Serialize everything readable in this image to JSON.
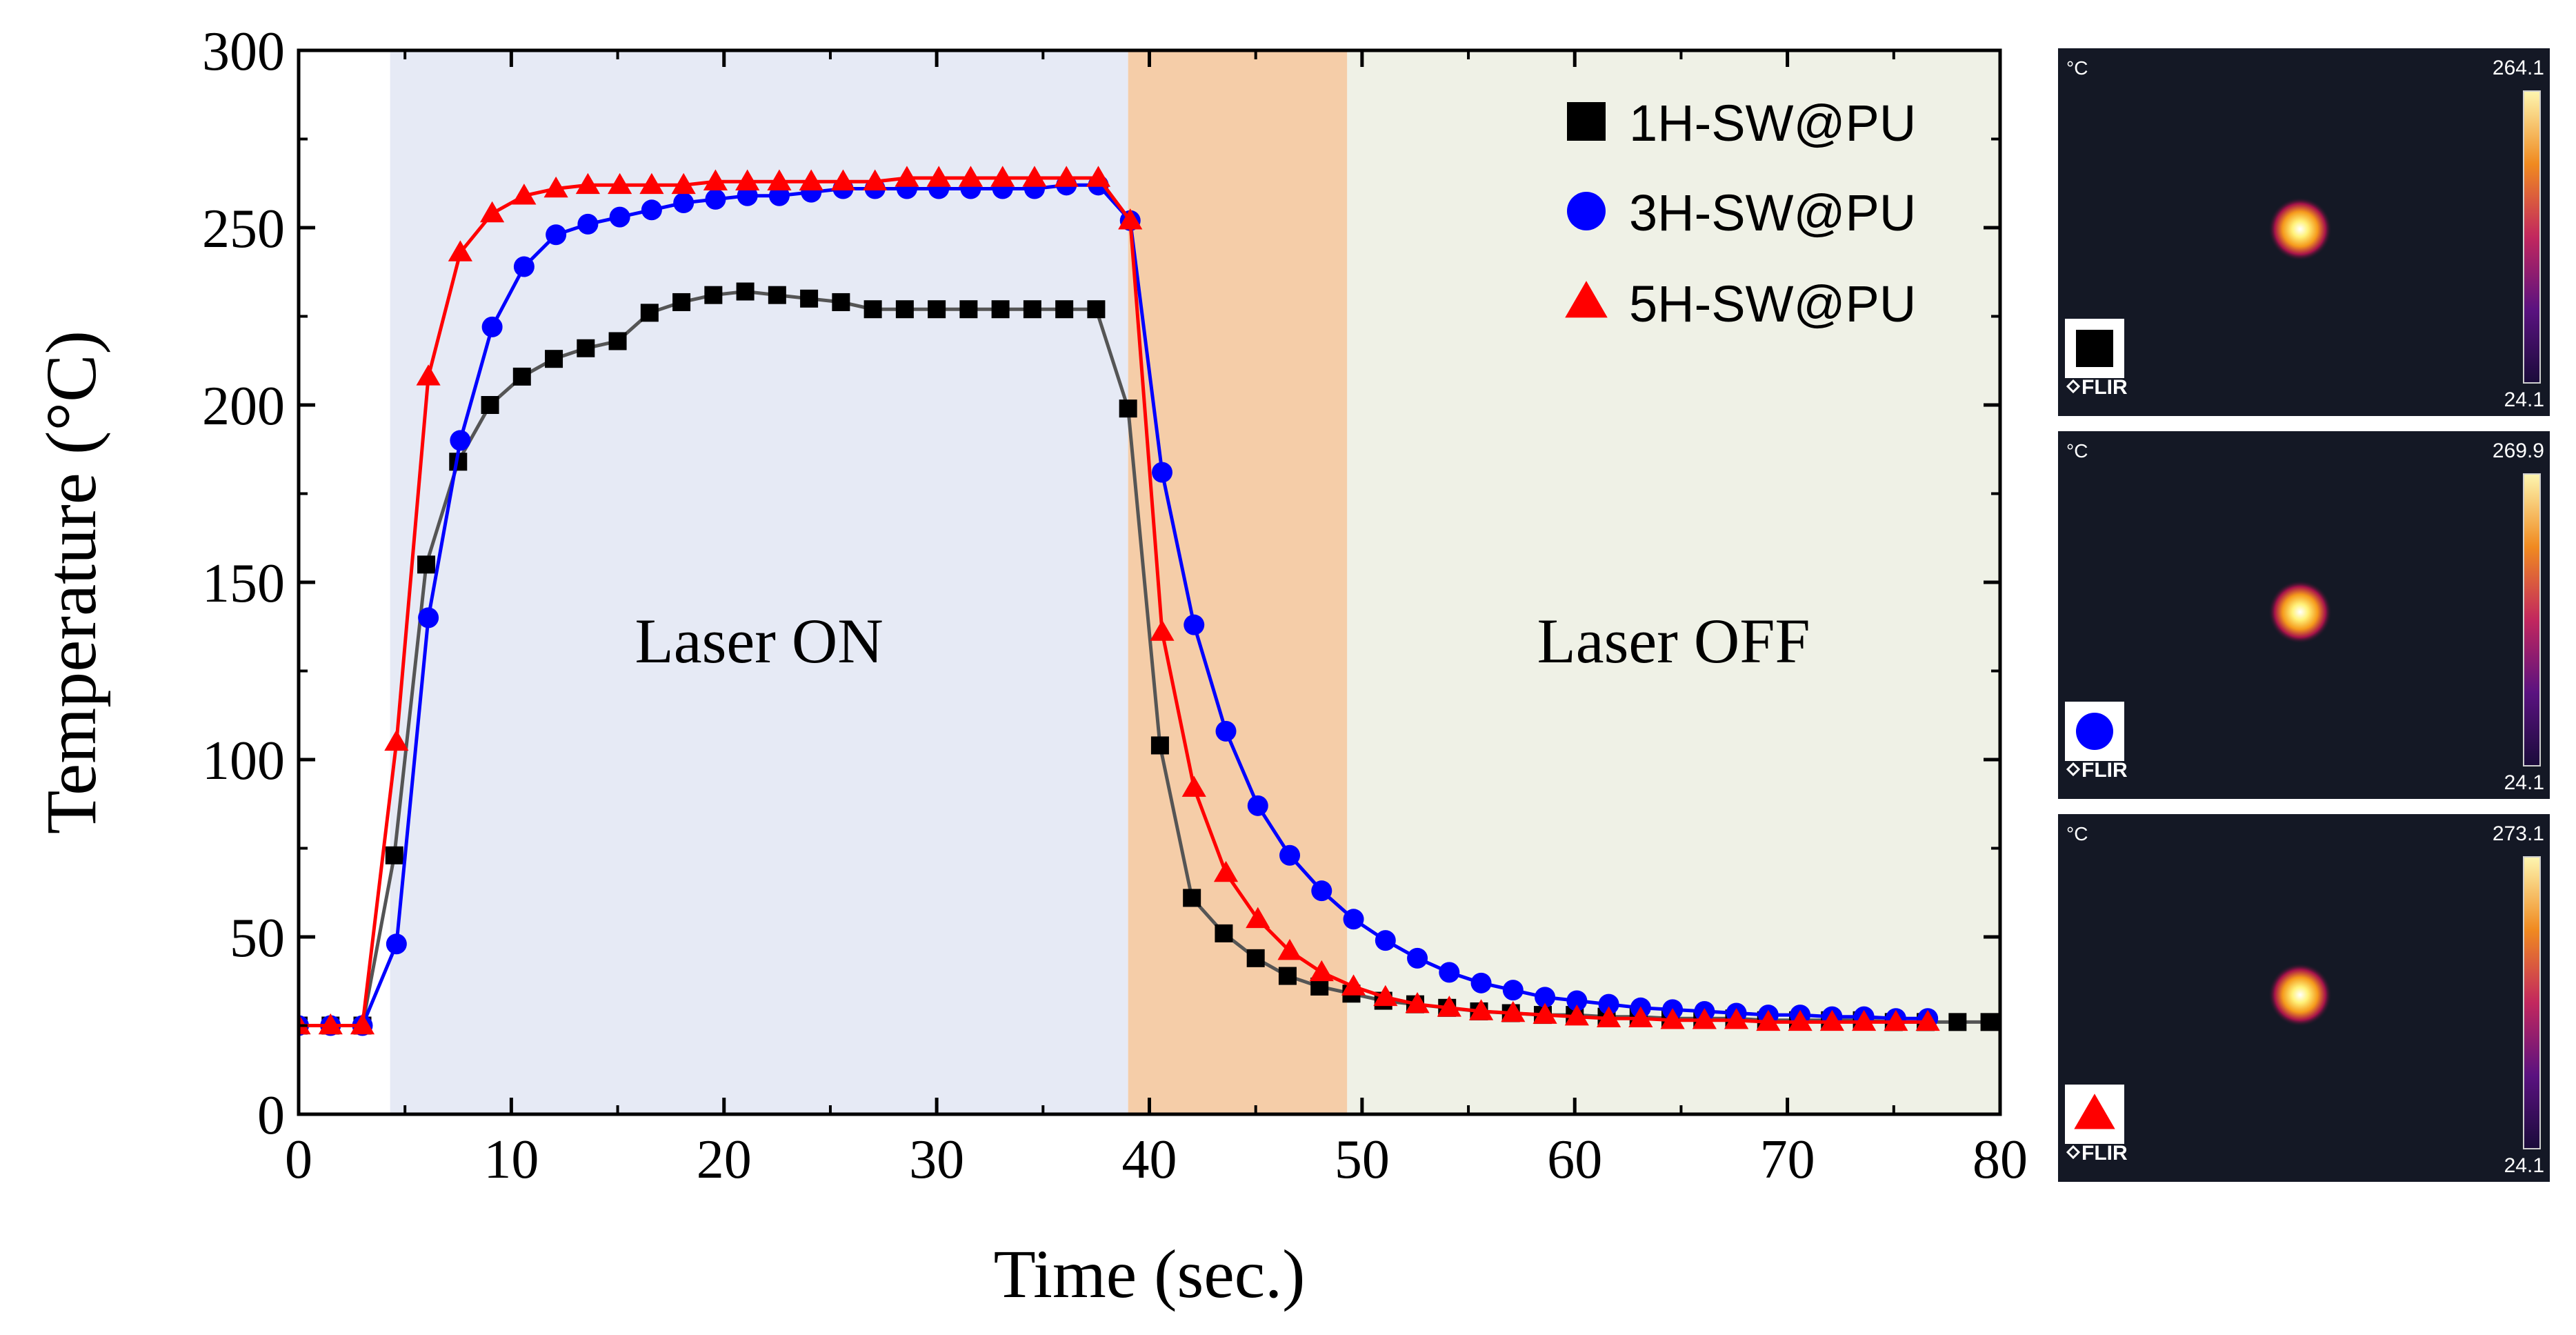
{
  "chart_data": {
    "type": "line",
    "xlabel": "Time (sec.)",
    "ylabel": "Temperature (°C)",
    "xlim": [
      0,
      80
    ],
    "ylim": [
      0,
      300
    ],
    "xticks": [
      0,
      10,
      20,
      30,
      40,
      50,
      60,
      70,
      80
    ],
    "yticks": [
      0,
      50,
      100,
      150,
      200,
      250,
      300
    ],
    "grid": false,
    "legend_position": "top-right",
    "regions": [
      {
        "label": "Laser ON",
        "start": 4.3,
        "end": 39.0,
        "color": "#e6eaf5"
      },
      {
        "label": "",
        "start": 39.0,
        "end": 49.3,
        "color": "#f5cda8"
      },
      {
        "label": "Laser OFF",
        "start": 49.3,
        "end": 80.0,
        "color": "#eff1e6"
      }
    ],
    "series": [
      {
        "name": "1H-SW@PU",
        "marker": "square",
        "color": "#000000",
        "line_color": "#555555",
        "x": [
          0,
          1.5,
          3.0,
          4.5,
          6.0,
          7.5,
          9.0,
          10.5,
          12.0,
          13.5,
          15.0,
          16.5,
          18.0,
          19.5,
          21.0,
          22.5,
          24.0,
          25.5,
          27.0,
          28.5,
          30.0,
          31.5,
          33.0,
          34.5,
          36.0,
          37.5,
          39.0,
          40.5,
          42.0,
          43.5,
          45.0,
          46.5,
          48.0,
          49.5,
          51.0,
          52.5,
          54.0,
          55.5,
          57.0,
          58.5,
          60.0,
          61.5,
          63.0,
          64.5,
          66.0,
          67.5,
          69.0,
          70.5,
          72.0,
          73.5,
          75.0,
          76.5,
          78.0,
          79.5
        ],
        "y": [
          25,
          25,
          25,
          73,
          155,
          184,
          200,
          208,
          213,
          216,
          218,
          226,
          229,
          231,
          232,
          231,
          230,
          229,
          227,
          227,
          227,
          227,
          227,
          227,
          227,
          227,
          199,
          104,
          61,
          51,
          44,
          39,
          36,
          34,
          32,
          31,
          30,
          29,
          28.5,
          28,
          28,
          27.5,
          27.5,
          27,
          27,
          27,
          26.5,
          26.5,
          26.5,
          26.5,
          26,
          26,
          26,
          26
        ]
      },
      {
        "name": "3H-SW@PU",
        "marker": "circle",
        "color": "#0000ff",
        "line_color": "#0000ff",
        "x": [
          0,
          1.5,
          3.0,
          4.6,
          6.1,
          7.6,
          9.1,
          10.6,
          12.1,
          13.6,
          15.1,
          16.6,
          18.1,
          19.6,
          21.1,
          22.6,
          24.1,
          25.6,
          27.1,
          28.6,
          30.1,
          31.6,
          33.1,
          34.6,
          36.1,
          37.6,
          39.1,
          40.6,
          42.1,
          43.6,
          45.1,
          46.6,
          48.1,
          49.6,
          51.1,
          52.6,
          54.1,
          55.6,
          57.1,
          58.6,
          60.1,
          61.6,
          63.1,
          64.6,
          66.1,
          67.6,
          69.1,
          70.6,
          72.1,
          73.6,
          75.1,
          76.6
        ],
        "y": [
          25,
          25,
          25,
          48,
          140,
          190,
          222,
          239,
          248,
          251,
          253,
          255,
          257,
          258,
          259,
          259,
          260,
          261,
          261,
          261,
          261,
          261,
          261,
          261,
          262,
          262,
          252,
          181,
          138,
          108,
          87,
          73,
          63,
          55,
          49,
          44,
          40,
          37,
          35,
          33,
          32,
          31,
          30,
          29.5,
          29,
          28.5,
          28,
          28,
          27.5,
          27.5,
          27,
          27
        ]
      },
      {
        "name": "5H-SW@PU",
        "marker": "triangle",
        "color": "#ff0000",
        "line_color": "#ff0000",
        "x": [
          0,
          1.5,
          3.0,
          4.6,
          6.1,
          7.6,
          9.1,
          10.6,
          12.1,
          13.6,
          15.1,
          16.6,
          18.1,
          19.6,
          21.1,
          22.6,
          24.1,
          25.6,
          27.1,
          28.6,
          30.1,
          31.6,
          33.1,
          34.6,
          36.1,
          37.6,
          39.1,
          40.6,
          42.1,
          43.6,
          45.1,
          46.6,
          48.1,
          49.6,
          51.1,
          52.6,
          54.1,
          55.6,
          57.1,
          58.6,
          60.1,
          61.6,
          63.1,
          64.6,
          66.1,
          67.6,
          69.1,
          70.6,
          72.1,
          73.6,
          75.1,
          76.6
        ],
        "y": [
          25,
          25,
          25,
          105,
          208,
          243,
          254,
          259,
          261,
          262,
          262,
          262,
          262,
          263,
          263,
          263,
          263,
          263,
          263,
          264,
          264,
          264,
          264,
          264,
          264,
          264,
          252,
          136,
          92,
          68,
          55,
          46,
          40,
          36,
          33,
          31,
          30,
          29,
          28.5,
          28,
          27.5,
          27,
          27,
          26.5,
          26.5,
          26.5,
          26,
          26,
          26,
          26,
          26,
          26
        ]
      }
    ]
  },
  "thermal_panels": [
    {
      "unit": "°C",
      "max": "264.1",
      "min": "24.1",
      "brand": "FLIR",
      "marker": "square",
      "marker_color": "#000000"
    },
    {
      "unit": "°C",
      "max": "269.9",
      "min": "24.1",
      "brand": "FLIR",
      "marker": "circle",
      "marker_color": "#0000ff"
    },
    {
      "unit": "°C",
      "max": "273.1",
      "min": "24.1",
      "brand": "FLIR",
      "marker": "triangle",
      "marker_color": "#ff0000"
    }
  ]
}
